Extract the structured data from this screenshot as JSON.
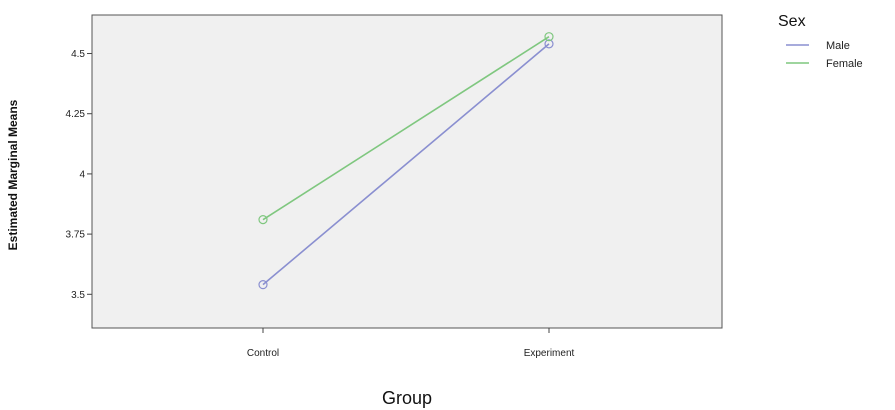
{
  "chart_data": {
    "type": "line",
    "categories": [
      "Control",
      "Experiment"
    ],
    "series": [
      {
        "name": "Male",
        "values": [
          3.54,
          4.54
        ],
        "color": "#8a8fd0"
      },
      {
        "name": "Female",
        "values": [
          3.81,
          4.57
        ],
        "color": "#7fc77f"
      }
    ],
    "xlabel": "Group",
    "ylabel": "Estimated Marginal Means",
    "yticks": [
      3.5,
      3.75,
      4,
      4.25,
      4.5
    ],
    "ytick_labels": [
      "3.5",
      "3.75",
      "4",
      "4.25",
      "4.5"
    ],
    "ylim": [
      3.36,
      4.66
    ],
    "legend_title": "Sex",
    "legend_position": "top-right",
    "plot_background": "#f0f0f0"
  }
}
